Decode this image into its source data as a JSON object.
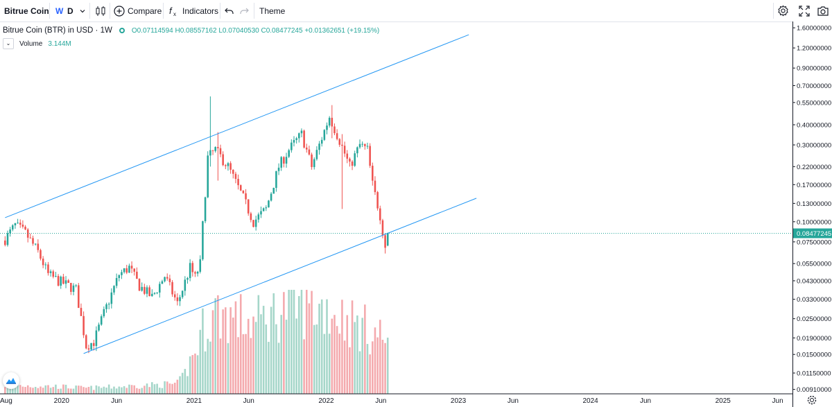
{
  "toolbar": {
    "symbol": "Bitrue Coin",
    "resolution_w": "W",
    "resolution_d": "D",
    "compare": "Compare",
    "indicators": "Indicators",
    "theme": "Theme"
  },
  "legend": {
    "title": "Bitrue Coin (BTR) in USD · 1W",
    "ohlc": "O0.07114594 H0.08557162 L0.07040530 C0.08477245 +0.01362651 (+19.15%)",
    "volume_label": "Volume",
    "volume_value": "3.144M"
  },
  "colors": {
    "up": "#26a69a",
    "down": "#ef5350",
    "vol_up": "#a5d6c9",
    "vol_down": "#f4a9ad",
    "channel": "#2196f3",
    "last_price": "#26a69a"
  },
  "icons": [
    "candle-chart-icon",
    "plus-circle-icon",
    "fx-icon",
    "undo-icon",
    "redo-icon",
    "gear-icon",
    "fullscreen-icon",
    "camera-icon",
    "logo-icon"
  ],
  "chart_data": {
    "type": "candlestick",
    "scale": "log",
    "last_price": 0.08477245,
    "last_price_label": "0.08477245",
    "yticks": [
      1.6,
      1.2,
      0.9,
      0.7,
      0.55,
      0.4,
      0.3,
      0.22,
      0.17,
      0.13,
      0.1,
      0.075,
      0.055,
      0.043,
      0.033,
      0.025,
      0.019,
      0.015,
      0.0115,
      0.0091
    ],
    "ytick_labels": [
      "1.60000000",
      "1.20000000",
      "0.90000000",
      "0.70000000",
      "0.55000000",
      "0.40000000",
      "0.30000000",
      "0.22000000",
      "0.17000000",
      "0.13000000",
      "0.10000000",
      "0.07500000",
      "0.05500000",
      "0.04300000",
      "0.03300000",
      "0.02500000",
      "0.01900000",
      "0.01500000",
      "0.01150000",
      "0.00910000"
    ],
    "xticks": [
      {
        "date": "2019-08-01",
        "label": "Aug"
      },
      {
        "date": "2020-01-01",
        "label": "2020"
      },
      {
        "date": "2020-06-01",
        "label": "Jun"
      },
      {
        "date": "2021-01-01",
        "label": "2021"
      },
      {
        "date": "2021-06-01",
        "label": "Jun"
      },
      {
        "date": "2022-01-01",
        "label": "2022"
      },
      {
        "date": "2022-06-01",
        "label": "Jun"
      },
      {
        "date": "2023-01-01",
        "label": "2023"
      },
      {
        "date": "2023-06-01",
        "label": "Jun"
      },
      {
        "date": "2024-01-01",
        "label": "2024"
      },
      {
        "date": "2024-06-01",
        "label": "Jun"
      },
      {
        "date": "2025-01-01",
        "label": "2025"
      },
      {
        "date": "2025-06-01",
        "label": "Jun"
      }
    ],
    "x_range": [
      "2019-07-15",
      "2025-07-12"
    ],
    "y_range": [
      0.0088,
      1.7
    ],
    "keypoints": [
      {
        "date": "2019-07-29",
        "price": 0.078
      },
      {
        "date": "2019-08-26",
        "price": 0.095
      },
      {
        "date": "2019-09-23",
        "price": 0.085
      },
      {
        "date": "2019-10-28",
        "price": 0.065
      },
      {
        "date": "2019-11-25",
        "price": 0.047
      },
      {
        "date": "2019-12-23",
        "price": 0.043
      },
      {
        "date": "2020-02-10",
        "price": 0.038
      },
      {
        "date": "2020-03-09",
        "price": 0.017
      },
      {
        "date": "2020-03-30",
        "price": 0.018
      },
      {
        "date": "2020-04-27",
        "price": 0.027
      },
      {
        "date": "2020-06-08",
        "price": 0.047
      },
      {
        "date": "2020-07-06",
        "price": 0.052
      },
      {
        "date": "2020-08-03",
        "price": 0.04
      },
      {
        "date": "2020-09-07",
        "price": 0.034
      },
      {
        "date": "2020-10-12",
        "price": 0.046
      },
      {
        "date": "2020-11-16",
        "price": 0.031
      },
      {
        "date": "2020-12-21",
        "price": 0.052
      },
      {
        "date": "2021-01-04",
        "price": 0.045
      },
      {
        "date": "2021-01-18",
        "price": 0.055
      },
      {
        "date": "2021-01-25",
        "price": 0.095
      },
      {
        "date": "2021-02-08",
        "price": 0.25
      },
      {
        "date": "2021-03-01",
        "price": 0.28
      },
      {
        "date": "2021-04-05",
        "price": 0.22
      },
      {
        "date": "2021-05-17",
        "price": 0.14
      },
      {
        "date": "2021-06-14",
        "price": 0.1
      },
      {
        "date": "2021-07-19",
        "price": 0.12
      },
      {
        "date": "2021-08-23",
        "price": 0.22
      },
      {
        "date": "2021-09-20",
        "price": 0.28
      },
      {
        "date": "2021-10-25",
        "price": 0.35
      },
      {
        "date": "2021-11-22",
        "price": 0.22
      },
      {
        "date": "2021-12-13",
        "price": 0.3
      },
      {
        "date": "2022-01-10",
        "price": 0.45
      },
      {
        "date": "2022-02-07",
        "price": 0.32
      },
      {
        "date": "2022-03-07",
        "price": 0.22
      },
      {
        "date": "2022-04-04",
        "price": 0.3
      },
      {
        "date": "2022-04-25",
        "price": 0.28
      },
      {
        "date": "2022-05-09",
        "price": 0.17
      },
      {
        "date": "2022-05-30",
        "price": 0.11
      },
      {
        "date": "2022-06-13",
        "price": 0.071
      },
      {
        "date": "2022-06-20",
        "price": 0.08477245
      }
    ],
    "volume_profile": [
      {
        "date": "2019-07-29",
        "volume": 0.3
      },
      {
        "date": "2019-12-23",
        "volume": 0.25
      },
      {
        "date": "2020-03-09",
        "volume": 0.2
      },
      {
        "date": "2020-11-16",
        "volume": 0.35
      },
      {
        "date": "2020-12-21",
        "volume": 1.1
      },
      {
        "date": "2021-01-25",
        "volume": 2.2
      },
      {
        "date": "2021-03-01",
        "volume": 2.8
      },
      {
        "date": "2021-06-14",
        "volume": 2.4
      },
      {
        "date": "2021-09-20",
        "volume": 3.0
      },
      {
        "date": "2022-01-10",
        "volume": 2.9
      },
      {
        "date": "2022-04-04",
        "volume": 2.3
      },
      {
        "date": "2022-06-20",
        "volume": 1.9
      }
    ],
    "volume_last": 3.144,
    "channel_upper": [
      {
        "date": "2019-07-29",
        "price": 0.106
      },
      {
        "date": "2023-01-30",
        "price": 1.45
      }
    ],
    "channel_lower": [
      {
        "date": "2020-03-02",
        "price": 0.0152
      },
      {
        "date": "2023-02-20",
        "price": 0.14
      }
    ],
    "highlights": [
      {
        "date": "2021-02-15",
        "high": 0.6,
        "low": 0.22
      },
      {
        "date": "2021-03-08",
        "high": 0.36,
        "low": 0.18
      },
      {
        "date": "2022-01-17",
        "high": 0.53,
        "low": 0.33
      },
      {
        "date": "2022-02-14",
        "high": 0.35,
        "low": 0.12
      },
      {
        "date": "2022-06-13",
        "high": 0.072,
        "low": 0.0635
      }
    ]
  }
}
